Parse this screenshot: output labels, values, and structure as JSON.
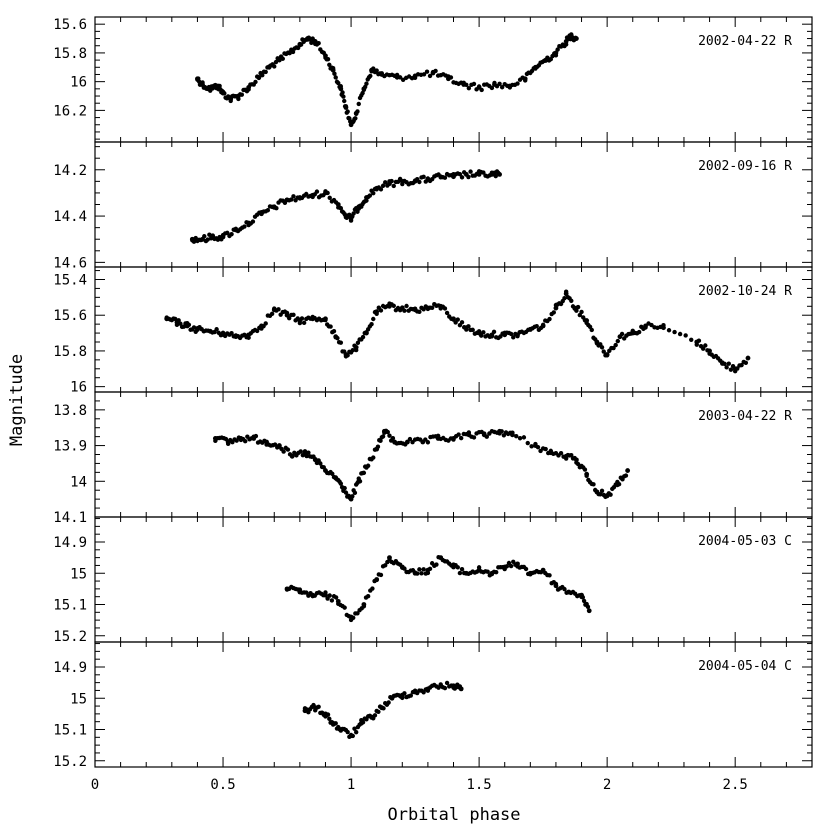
{
  "figure": {
    "xlabel": "Orbital phase",
    "ylabel": "Magnitude",
    "x_tick_labels": [
      "0",
      "0.5",
      "1",
      "1.5",
      "2",
      "2.5"
    ]
  },
  "chart_data": [
    {
      "type": "scatter",
      "label": "2002-04-22 R",
      "xlim": [
        0,
        2.8
      ],
      "ylim": [
        15.55,
        16.42
      ],
      "y_inverted": true,
      "y_ticks": [
        15.6,
        15.8,
        16,
        16.2
      ],
      "y_tick_labels": [
        "15.6",
        "15.8",
        "16",
        "16.2"
      ],
      "points": [
        [
          0.4,
          15.98
        ],
        [
          0.42,
          16.02
        ],
        [
          0.45,
          16.05
        ],
        [
          0.48,
          16.03
        ],
        [
          0.5,
          16.08
        ],
        [
          0.53,
          16.12
        ],
        [
          0.56,
          16.1
        ],
        [
          0.6,
          16.04
        ],
        [
          0.64,
          15.97
        ],
        [
          0.68,
          15.9
        ],
        [
          0.72,
          15.85
        ],
        [
          0.76,
          15.8
        ],
        [
          0.8,
          15.74
        ],
        [
          0.83,
          15.7
        ],
        [
          0.86,
          15.72
        ],
        [
          0.9,
          15.82
        ],
        [
          0.93,
          15.92
        ],
        [
          0.96,
          16.05
        ],
        [
          0.98,
          16.18
        ],
        [
          1.0,
          16.3
        ],
        [
          1.02,
          16.22
        ],
        [
          1.05,
          16.05
        ],
        [
          1.08,
          15.92
        ],
        [
          1.12,
          15.95
        ],
        [
          1.18,
          15.97
        ],
        [
          1.25,
          15.96
        ],
        [
          1.32,
          15.94
        ],
        [
          1.38,
          15.98
        ],
        [
          1.44,
          16.02
        ],
        [
          1.5,
          16.04
        ],
        [
          1.56,
          16.02
        ],
        [
          1.62,
          16.03
        ],
        [
          1.68,
          15.98
        ],
        [
          1.72,
          15.9
        ],
        [
          1.76,
          15.85
        ],
        [
          1.8,
          15.8
        ],
        [
          1.84,
          15.72
        ],
        [
          1.86,
          15.68
        ],
        [
          1.88,
          15.7
        ]
      ]
    },
    {
      "type": "scatter",
      "label": "2002-09-16 R",
      "xlim": [
        0,
        2.8
      ],
      "ylim": [
        14.08,
        14.62
      ],
      "y_inverted": true,
      "y_ticks": [
        14.2,
        14.4,
        14.6
      ],
      "y_tick_labels": [
        "14.2",
        "14.4",
        "14.6"
      ],
      "points": [
        [
          0.38,
          14.5
        ],
        [
          0.42,
          14.5
        ],
        [
          0.46,
          14.49
        ],
        [
          0.5,
          14.49
        ],
        [
          0.55,
          14.46
        ],
        [
          0.6,
          14.43
        ],
        [
          0.65,
          14.39
        ],
        [
          0.7,
          14.36
        ],
        [
          0.75,
          14.33
        ],
        [
          0.8,
          14.32
        ],
        [
          0.85,
          14.31
        ],
        [
          0.9,
          14.3
        ],
        [
          0.95,
          14.35
        ],
        [
          0.98,
          14.4
        ],
        [
          1.0,
          14.41
        ],
        [
          1.03,
          14.36
        ],
        [
          1.06,
          14.32
        ],
        [
          1.1,
          14.28
        ],
        [
          1.15,
          14.26
        ],
        [
          1.2,
          14.25
        ],
        [
          1.25,
          14.25
        ],
        [
          1.3,
          14.24
        ],
        [
          1.35,
          14.23
        ],
        [
          1.4,
          14.23
        ],
        [
          1.45,
          14.22
        ],
        [
          1.5,
          14.22
        ],
        [
          1.55,
          14.22
        ],
        [
          1.58,
          14.22
        ]
      ]
    },
    {
      "type": "scatter",
      "label": "2002-10-24 R",
      "xlim": [
        0,
        2.8
      ],
      "ylim": [
        15.33,
        16.03
      ],
      "y_inverted": true,
      "y_ticks": [
        15.4,
        15.6,
        15.8,
        16
      ],
      "y_tick_labels": [
        "15.4",
        "15.6",
        "15.8",
        "16"
      ],
      "points": [
        [
          0.28,
          15.62
        ],
        [
          0.32,
          15.64
        ],
        [
          0.36,
          15.66
        ],
        [
          0.4,
          15.68
        ],
        [
          0.45,
          15.69
        ],
        [
          0.5,
          15.7
        ],
        [
          0.55,
          15.72
        ],
        [
          0.6,
          15.71
        ],
        [
          0.65,
          15.66
        ],
        [
          0.7,
          15.57
        ],
        [
          0.75,
          15.6
        ],
        [
          0.8,
          15.63
        ],
        [
          0.85,
          15.62
        ],
        [
          0.9,
          15.62
        ],
        [
          0.94,
          15.72
        ],
        [
          0.98,
          15.82
        ],
        [
          1.02,
          15.78
        ],
        [
          1.06,
          15.7
        ],
        [
          1.1,
          15.58
        ],
        [
          1.15,
          15.55
        ],
        [
          1.2,
          15.56
        ],
        [
          1.25,
          15.57
        ],
        [
          1.3,
          15.56
        ],
        [
          1.35,
          15.55
        ],
        [
          1.4,
          15.62
        ],
        [
          1.45,
          15.67
        ],
        [
          1.5,
          15.7
        ],
        [
          1.55,
          15.71
        ],
        [
          1.6,
          15.71
        ],
        [
          1.65,
          15.71
        ],
        [
          1.7,
          15.68
        ],
        [
          1.75,
          15.66
        ],
        [
          1.8,
          15.56
        ],
        [
          1.84,
          15.48
        ],
        [
          1.88,
          15.56
        ],
        [
          1.92,
          15.63
        ],
        [
          1.96,
          15.75
        ],
        [
          2.0,
          15.82
        ],
        [
          2.05,
          15.72
        ],
        [
          2.1,
          15.7
        ],
        [
          2.15,
          15.66
        ],
        [
          2.22,
          15.67
        ],
        [
          2.35,
          15.75
        ],
        [
          2.4,
          15.8
        ],
        [
          2.45,
          15.87
        ],
        [
          2.5,
          15.9
        ],
        [
          2.55,
          15.84
        ]
      ]
    },
    {
      "type": "scatter",
      "label": "2003-04-22 R",
      "xlim": [
        0,
        2.8
      ],
      "ylim": [
        13.75,
        14.1
      ],
      "y_inverted": true,
      "y_ticks": [
        13.8,
        13.9,
        14,
        14.1
      ],
      "y_tick_labels": [
        "13.8",
        "13.9",
        "14",
        "14.1"
      ],
      "points": [
        [
          0.47,
          13.88
        ],
        [
          0.52,
          13.89
        ],
        [
          0.57,
          13.88
        ],
        [
          0.62,
          13.88
        ],
        [
          0.67,
          13.89
        ],
        [
          0.72,
          13.9
        ],
        [
          0.77,
          13.93
        ],
        [
          0.82,
          13.92
        ],
        [
          0.86,
          13.94
        ],
        [
          0.9,
          13.97
        ],
        [
          0.94,
          13.99
        ],
        [
          0.97,
          14.02
        ],
        [
          1.0,
          14.05
        ],
        [
          1.03,
          14.0
        ],
        [
          1.06,
          13.96
        ],
        [
          1.1,
          13.91
        ],
        [
          1.13,
          13.86
        ],
        [
          1.17,
          13.89
        ],
        [
          1.22,
          13.89
        ],
        [
          1.28,
          13.89
        ],
        [
          1.34,
          13.88
        ],
        [
          1.4,
          13.88
        ],
        [
          1.46,
          13.87
        ],
        [
          1.52,
          13.87
        ],
        [
          1.58,
          13.86
        ],
        [
          1.63,
          13.87
        ],
        [
          1.72,
          13.9
        ],
        [
          1.78,
          13.92
        ],
        [
          1.84,
          13.93
        ],
        [
          1.88,
          13.94
        ],
        [
          1.92,
          13.98
        ],
        [
          1.96,
          14.03
        ],
        [
          2.0,
          14.04
        ],
        [
          2.04,
          14.01
        ],
        [
          2.08,
          13.97
        ]
      ]
    },
    {
      "type": "scatter",
      "label": "2004-05-03 C",
      "xlim": [
        0,
        2.8
      ],
      "ylim": [
        14.82,
        15.22
      ],
      "y_inverted": true,
      "y_ticks": [
        14.9,
        15,
        15.1,
        15.2
      ],
      "y_tick_labels": [
        "14.9",
        "15",
        "15.1",
        "15.2"
      ],
      "points": [
        [
          0.75,
          15.05
        ],
        [
          0.8,
          15.06
        ],
        [
          0.85,
          15.07
        ],
        [
          0.9,
          15.07
        ],
        [
          0.95,
          15.09
        ],
        [
          1.0,
          15.14
        ],
        [
          1.05,
          15.1
        ],
        [
          1.1,
          15.02
        ],
        [
          1.15,
          14.95
        ],
        [
          1.2,
          14.98
        ],
        [
          1.25,
          15.0
        ],
        [
          1.3,
          14.99
        ],
        [
          1.35,
          14.95
        ],
        [
          1.4,
          14.98
        ],
        [
          1.45,
          15.0
        ],
        [
          1.5,
          14.99
        ],
        [
          1.55,
          15.0
        ],
        [
          1.6,
          14.98
        ],
        [
          1.65,
          14.97
        ],
        [
          1.7,
          15.0
        ],
        [
          1.75,
          14.99
        ],
        [
          1.8,
          15.04
        ],
        [
          1.85,
          15.06
        ],
        [
          1.9,
          15.07
        ],
        [
          1.93,
          15.12
        ]
      ]
    },
    {
      "type": "scatter",
      "label": "2004-05-04 C",
      "xlim": [
        0,
        2.8
      ],
      "ylim": [
        14.82,
        15.22
      ],
      "y_inverted": true,
      "y_ticks": [
        14.9,
        15,
        15.1,
        15.2
      ],
      "y_tick_labels": [
        "14.9",
        "15",
        "15.1",
        "15.2"
      ],
      "points": [
        [
          0.82,
          15.04
        ],
        [
          0.86,
          15.03
        ],
        [
          0.9,
          15.05
        ],
        [
          0.93,
          15.08
        ],
        [
          0.96,
          15.1
        ],
        [
          1.0,
          15.12
        ],
        [
          1.04,
          15.08
        ],
        [
          1.08,
          15.06
        ],
        [
          1.12,
          15.03
        ],
        [
          1.16,
          15.0
        ],
        [
          1.2,
          14.99
        ],
        [
          1.25,
          14.98
        ],
        [
          1.3,
          14.97
        ],
        [
          1.35,
          14.96
        ],
        [
          1.4,
          14.96
        ],
        [
          1.43,
          14.97
        ]
      ]
    }
  ]
}
